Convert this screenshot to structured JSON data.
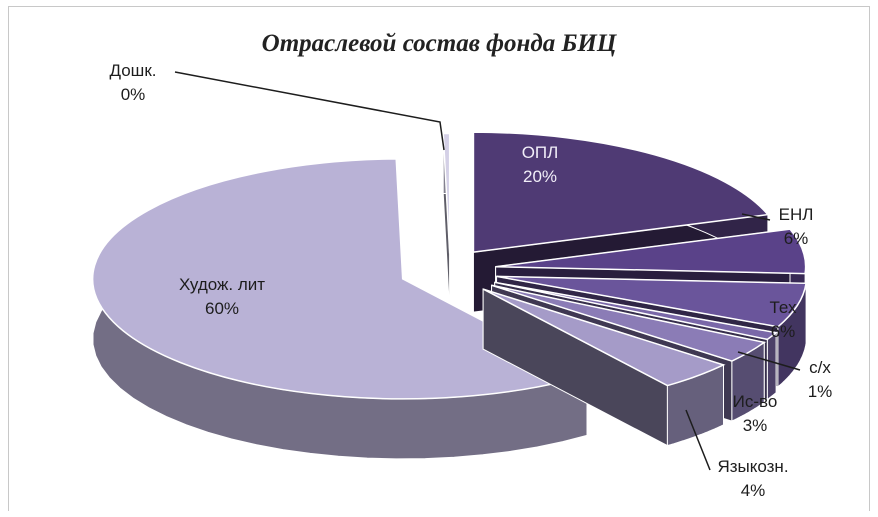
{
  "chart_data": {
    "type": "pie",
    "style": "3d-exploded",
    "title": "Отраслевой состав фонда БИЦ",
    "slices": [
      {
        "name": "ОПЛ",
        "value": 20,
        "label": "20%",
        "color": "#4f3a74"
      },
      {
        "name": "ЕНЛ",
        "value": 6,
        "label": "6%",
        "color": "#5a4289"
      },
      {
        "name": "Тех",
        "value": 6,
        "label": "6%",
        "color": "#6a559b"
      },
      {
        "name": "с/х",
        "value": 1,
        "label": "1%",
        "color": "#7a68a8"
      },
      {
        "name": "Ис-во",
        "value": 3,
        "label": "3%",
        "color": "#8b7cb6"
      },
      {
        "name": "Языкозн.",
        "value": 4,
        "label": "4%",
        "color": "#a59bc8"
      },
      {
        "name": "Худож. лит",
        "value": 60,
        "label": "60%",
        "color": "#b9b2d6"
      },
      {
        "name": "Дошк.",
        "value": 0,
        "label": "0%",
        "color": "#d4d0e6"
      }
    ]
  }
}
